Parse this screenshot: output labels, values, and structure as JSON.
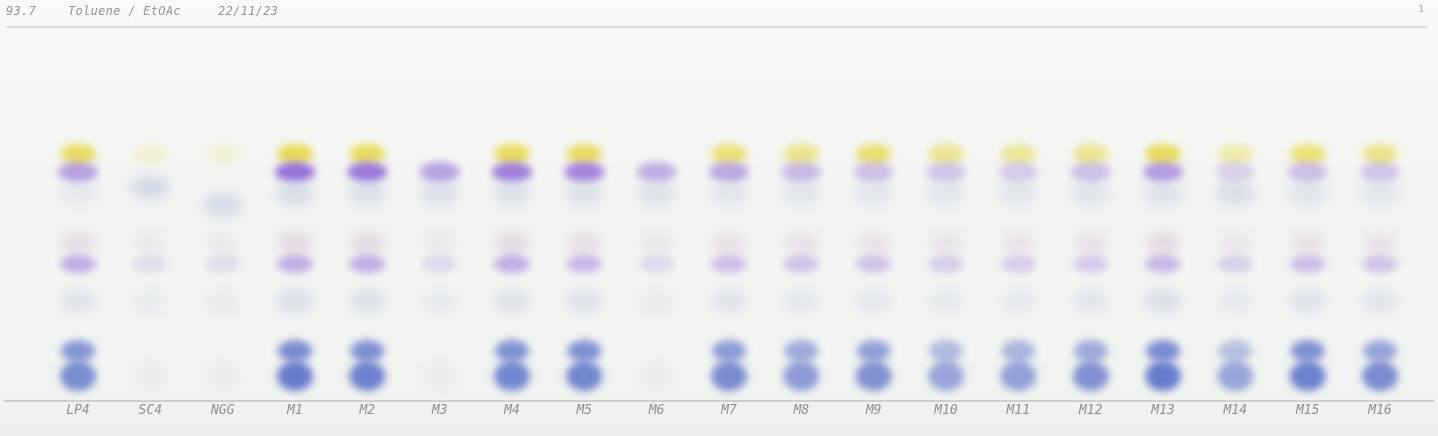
{
  "header": {
    "code": "93.7",
    "solvent": "Toluene / EtOAc",
    "date": "22/11/23",
    "corner_mark": "1"
  },
  "lanes": [
    {
      "label": "LP4",
      "spots": {
        "yellow": 0.9,
        "violet": 0.55,
        "upper_blue": 0.15,
        "mid_pink": 0.25,
        "mid_violet": 0.45,
        "lower_grey": 0.25,
        "base_top": 0.75,
        "base_bottom": 0.85
      }
    },
    {
      "label": "SC4",
      "spots": {
        "yellow": 0.08,
        "violet": 0.0,
        "upper_blue": 0.55,
        "mid_pink": 0.05,
        "mid_violet": 0.05,
        "lower_grey": 0.1,
        "base_top": 0.0,
        "base_bottom": 0.15
      }
    },
    {
      "label": "NGG",
      "spots": {
        "yellow": 0.05,
        "violet": 0.0,
        "upper_blue": 0.5,
        "mid_pink": 0.05,
        "mid_violet": 0.05,
        "lower_grey": 0.1,
        "base_top": 0.0,
        "base_bottom": 0.15
      }
    },
    {
      "label": "M1",
      "spots": {
        "yellow": 1.0,
        "violet": 0.95,
        "upper_blue": 0.45,
        "mid_pink": 0.3,
        "mid_violet": 0.45,
        "lower_grey": 0.4,
        "base_top": 0.85,
        "base_bottom": 1.0
      }
    },
    {
      "label": "M2",
      "spots": {
        "yellow": 0.95,
        "violet": 0.9,
        "upper_blue": 0.4,
        "mid_pink": 0.3,
        "mid_violet": 0.45,
        "lower_grey": 0.35,
        "base_top": 0.8,
        "base_bottom": 0.95
      }
    },
    {
      "label": "M3",
      "spots": {
        "yellow": 0.0,
        "violet": 0.55,
        "upper_blue": 0.4,
        "mid_pink": 0.05,
        "mid_violet": 0.08,
        "lower_grey": 0.12,
        "base_top": 0.0,
        "base_bottom": 0.18
      }
    },
    {
      "label": "M4",
      "spots": {
        "yellow": 0.95,
        "violet": 0.85,
        "upper_blue": 0.35,
        "mid_pink": 0.3,
        "mid_violet": 0.45,
        "lower_grey": 0.3,
        "base_top": 0.8,
        "base_bottom": 0.9
      }
    },
    {
      "label": "M5",
      "spots": {
        "yellow": 0.9,
        "violet": 0.8,
        "upper_blue": 0.35,
        "mid_pink": 0.2,
        "mid_violet": 0.35,
        "lower_grey": 0.3,
        "base_top": 0.8,
        "base_bottom": 0.9
      }
    },
    {
      "label": "M6",
      "spots": {
        "yellow": 0.0,
        "violet": 0.45,
        "upper_blue": 0.35,
        "mid_pink": 0.08,
        "mid_violet": 0.08,
        "lower_grey": 0.1,
        "base_top": 0.0,
        "base_bottom": 0.15
      }
    },
    {
      "label": "M7",
      "spots": {
        "yellow": 0.75,
        "violet": 0.5,
        "upper_blue": 0.25,
        "mid_pink": 0.18,
        "mid_violet": 0.3,
        "lower_grey": 0.25,
        "base_top": 0.7,
        "base_bottom": 0.85
      }
    },
    {
      "label": "M8",
      "spots": {
        "yellow": 0.6,
        "violet": 0.35,
        "upper_blue": 0.25,
        "mid_pink": 0.18,
        "mid_violet": 0.25,
        "lower_grey": 0.2,
        "base_top": 0.55,
        "base_bottom": 0.7
      }
    },
    {
      "label": "M9",
      "spots": {
        "yellow": 0.8,
        "violet": 0.3,
        "upper_blue": 0.25,
        "mid_pink": 0.15,
        "mid_violet": 0.25,
        "lower_grey": 0.2,
        "base_top": 0.65,
        "base_bottom": 0.8
      }
    },
    {
      "label": "M10",
      "spots": {
        "yellow": 0.55,
        "violet": 0.25,
        "upper_blue": 0.25,
        "mid_pink": 0.12,
        "mid_violet": 0.18,
        "lower_grey": 0.15,
        "base_top": 0.4,
        "base_bottom": 0.6
      }
    },
    {
      "label": "M11",
      "spots": {
        "yellow": 0.5,
        "violet": 0.2,
        "upper_blue": 0.25,
        "mid_pink": 0.12,
        "mid_violet": 0.18,
        "lower_grey": 0.15,
        "base_top": 0.45,
        "base_bottom": 0.65
      }
    },
    {
      "label": "M12",
      "spots": {
        "yellow": 0.55,
        "violet": 0.3,
        "upper_blue": 0.3,
        "mid_pink": 0.15,
        "mid_violet": 0.2,
        "lower_grey": 0.22,
        "base_top": 0.55,
        "base_bottom": 0.8
      }
    },
    {
      "label": "M13",
      "spots": {
        "yellow": 0.95,
        "violet": 0.6,
        "upper_blue": 0.35,
        "mid_pink": 0.3,
        "mid_violet": 0.35,
        "lower_grey": 0.4,
        "base_top": 0.85,
        "base_bottom": 1.0
      }
    },
    {
      "label": "M14",
      "spots": {
        "yellow": 0.35,
        "violet": 0.15,
        "upper_blue": 0.45,
        "mid_pink": 0.1,
        "mid_violet": 0.15,
        "lower_grey": 0.15,
        "base_top": 0.35,
        "base_bottom": 0.6
      }
    },
    {
      "label": "M15",
      "spots": {
        "yellow": 0.75,
        "violet": 0.3,
        "upper_blue": 0.3,
        "mid_pink": 0.18,
        "mid_violet": 0.3,
        "lower_grey": 0.3,
        "base_top": 0.8,
        "base_bottom": 0.95
      }
    },
    {
      "label": "M16",
      "spots": {
        "yellow": 0.6,
        "violet": 0.25,
        "upper_blue": 0.25,
        "mid_pink": 0.15,
        "mid_violet": 0.25,
        "lower_grey": 0.25,
        "base_top": 0.6,
        "base_bottom": 0.85
      }
    }
  ],
  "colors": {
    "plate": "#f3f5f2",
    "yellow": "#e7d94a",
    "violet": "#8a5fd6",
    "blue": "#5d72c9",
    "pink": "#c6a3c3",
    "grey_blue": "#b9c4de",
    "line": "#b8bdba"
  }
}
